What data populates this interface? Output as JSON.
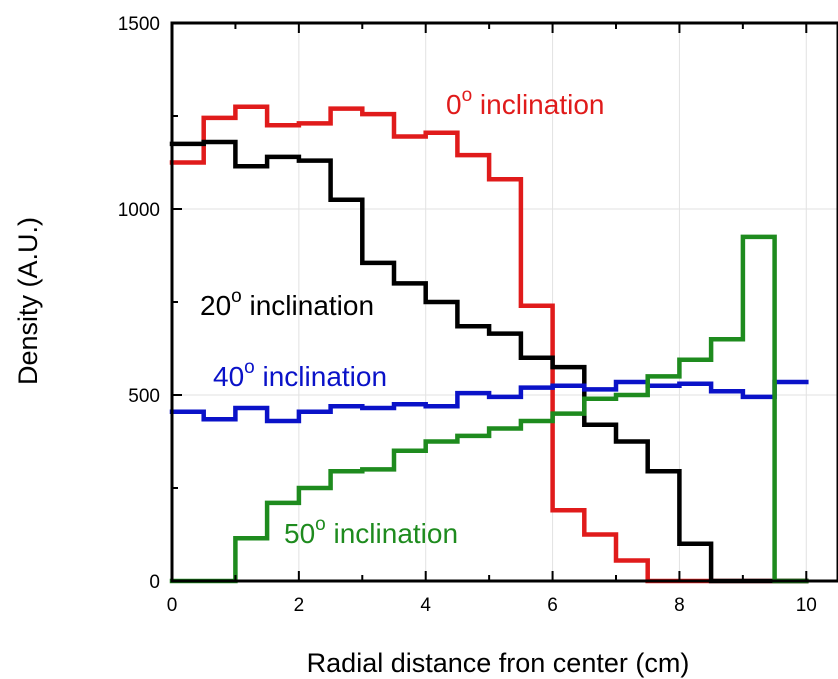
{
  "chart_data": {
    "type": "line",
    "step": true,
    "xlabel": "Radial distance fron center (cm)",
    "ylabel": "Density (A.U.)",
    "xlim": [
      0,
      10.5
    ],
    "ylim": [
      0,
      1500
    ],
    "xticks": [
      0,
      2,
      4,
      6,
      8,
      10
    ],
    "yticks": [
      0,
      500,
      1000,
      1500
    ],
    "xtick_labels": [
      "0",
      "2",
      "4",
      "6",
      "8",
      "10"
    ],
    "ytick_labels": [
      "0",
      "500",
      "1000",
      "1500"
    ],
    "grid": true,
    "bin_edges": [
      0,
      0.5,
      1,
      1.5,
      2,
      2.5,
      3,
      3.5,
      4,
      4.5,
      5,
      5.5,
      6,
      6.5,
      7,
      7.5,
      8,
      8.5,
      9,
      9.5,
      10
    ],
    "series": [
      {
        "color": "#e01b1b",
        "label_value": "0",
        "label_sup": "o",
        "label_text": " inclination",
        "values": [
          1125,
          1245,
          1275,
          1225,
          1230,
          1270,
          1255,
          1195,
          1205,
          1145,
          1080,
          740,
          190,
          125,
          55,
          0,
          0,
          0,
          0,
          0
        ]
      },
      {
        "color": "#000000",
        "label_value": "20",
        "label_sup": "o",
        "label_text": " inclination",
        "values": [
          1175,
          1180,
          1115,
          1140,
          1130,
          1025,
          855,
          800,
          750,
          685,
          665,
          600,
          575,
          420,
          375,
          295,
          100,
          0,
          0,
          0
        ]
      },
      {
        "color": "#0a12c8",
        "label_value": "40",
        "label_sup": "o",
        "label_text": " inclination",
        "values": [
          455,
          435,
          465,
          430,
          455,
          470,
          465,
          475,
          470,
          505,
          495,
          520,
          525,
          515,
          535,
          525,
          530,
          510,
          495,
          535
        ]
      },
      {
        "color": "#1e8b1e",
        "label_value": "50",
        "label_sup": "o",
        "label_text": " inclination",
        "values": [
          0,
          0,
          115,
          210,
          250,
          295,
          300,
          350,
          375,
          390,
          410,
          430,
          450,
          490,
          500,
          550,
          595,
          650,
          925,
          0
        ]
      }
    ]
  }
}
